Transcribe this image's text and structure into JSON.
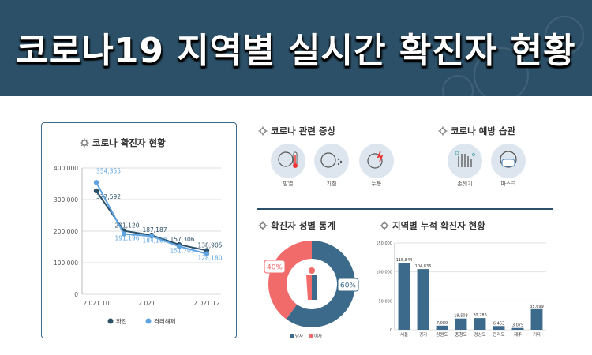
{
  "banner": {
    "title": "코로나19 지역별 실시간 확진자 현황",
    "bg_color": "#2c5068"
  },
  "trend": {
    "title": "코로나 확진자 현황",
    "legend": [
      {
        "name": "확진",
        "color": "#2c5068"
      },
      {
        "name": "격리해제",
        "color": "#5fa3e0"
      }
    ]
  },
  "symptoms": {
    "title": "코로나 관련 증상",
    "items": [
      {
        "label": "발열",
        "icon": "thermometer-icon"
      },
      {
        "label": "기침",
        "icon": "cough-icon"
      },
      {
        "label": "두통",
        "icon": "headache-icon"
      }
    ]
  },
  "prevention": {
    "title": "코로나 예방 습관",
    "items": [
      {
        "label": "손씻기",
        "icon": "handwash-icon"
      },
      {
        "label": "마스크",
        "icon": "mask-icon"
      }
    ]
  },
  "gender": {
    "title": "확진자 성별 통계",
    "male_pct_label": "60%",
    "female_pct_label": "40%",
    "legend": [
      {
        "name": "남자",
        "color": "#3b6a8a"
      },
      {
        "name": "여자",
        "color": "#f26b6b"
      }
    ]
  },
  "regional": {
    "title": "지역별 누적 확진자 현황"
  },
  "chart_data": [
    {
      "type": "line",
      "title": "코로나 확진자 현황",
      "x": [
        "2021.10",
        "",
        "2021.11",
        "",
        "2021.12"
      ],
      "x_tick_labels": [
        "2.021.10",
        "2.021.11",
        "2.021.12"
      ],
      "y_ticks": [
        "0",
        "100,000",
        "200,000",
        "300,000",
        "400,000"
      ],
      "ylim": [
        0,
        400000
      ],
      "series": [
        {
          "name": "확진",
          "color": "#2c5068",
          "values": [
            327592,
            201120,
            187187,
            157306,
            138905
          ],
          "labels": [
            "327,592",
            "201,120",
            "187,187",
            "157,306",
            "138,905"
          ]
        },
        {
          "name": "격리해제",
          "color": "#5fa3e0",
          "values": [
            354355,
            191196,
            184167,
            151705,
            128180
          ],
          "labels": [
            "354,355",
            "191,196",
            "184,167",
            "151,705",
            "128,180"
          ]
        }
      ]
    },
    {
      "type": "pie",
      "title": "확진자 성별 통계",
      "categories": [
        "남자",
        "여자"
      ],
      "values": [
        60,
        40
      ],
      "colors": [
        "#3b6a8a",
        "#f26b6b"
      ]
    },
    {
      "type": "bar",
      "title": "지역별 누적 확진자 현황",
      "categories": [
        "서울",
        "경기",
        "강원도",
        "충청도",
        "경상도",
        "전라도",
        "제주",
        "기타"
      ],
      "values": [
        115844,
        104836,
        7089,
        19503,
        20286,
        6463,
        3075,
        35699
      ],
      "labels": [
        "115,844",
        "104,836",
        "7,089",
        "19,503",
        "20,286",
        "6,463",
        "3,075",
        "35,699"
      ],
      "y_ticks": [
        "0",
        "50,000",
        "100,000",
        "150,000"
      ],
      "ylim": [
        0,
        150000
      ],
      "color": "#3b6a8a"
    }
  ]
}
